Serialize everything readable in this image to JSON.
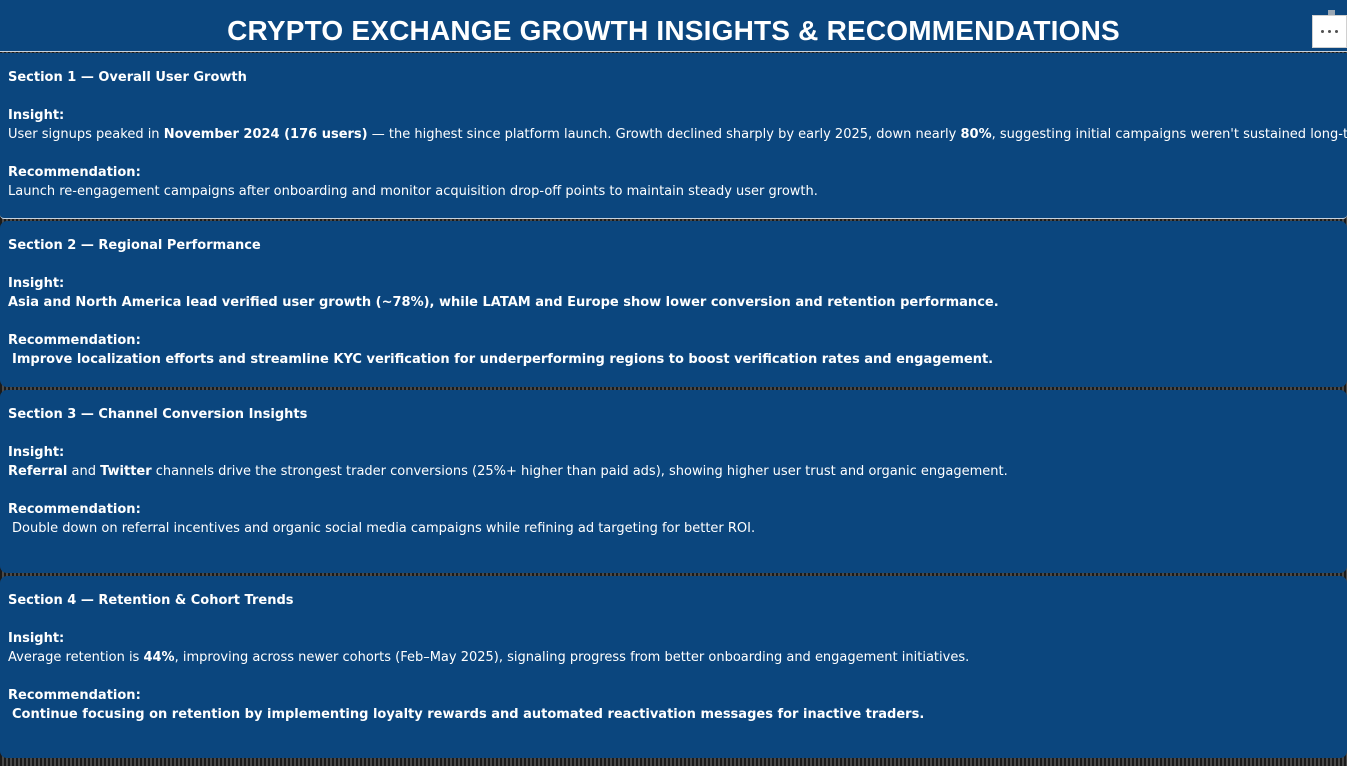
{
  "header": {
    "title": "CRYPTO EXCHANGE GROWTH INSIGHTS & RECOMMENDATIONS"
  },
  "toolbar": {
    "more_icon": "more-horizontal-icon"
  },
  "sections": [
    {
      "heading": "Section 1 — Overall User Growth",
      "insight_label": "Insight:",
      "insight": {
        "p1": "User signups peaked in ",
        "b1": "November 2024 (176 users)",
        "p2": " — the highest since platform launch. Growth declined sharply by early 2025, down nearly ",
        "b2": "80%",
        "p3": ", suggesting initial campaigns weren't sustained long-term."
      },
      "recommendation_label": "Recommendation:",
      "recommendation": "Launch re-engagement campaigns after onboarding and monitor acquisition drop-off points to maintain steady user growth."
    },
    {
      "heading": "Section 2 — Regional Performance",
      "insight_label": "Insight:",
      "insight": "Asia and North America lead verified user growth (~78%), while LATAM and Europe show lower conversion and retention performance.",
      "recommendation_label": "Recommendation:",
      "recommendation": "Improve localization efforts and streamline KYC verification for underperforming regions to boost verification rates and engagement."
    },
    {
      "heading": "Section 3 — Channel Conversion Insights",
      "insight_label": "Insight:",
      "insight": {
        "b1": "Referral",
        "p1": " and ",
        "b2": "Twitter",
        "p2": " channels drive the strongest trader conversions (25%+ higher than paid ads), showing higher user trust and organic engagement."
      },
      "recommendation_label": "Recommendation:",
      "recommendation": "Double down on referral incentives and organic social media campaigns while refining ad targeting for better ROI."
    },
    {
      "heading": "Section 4 — Retention & Cohort Trends",
      "insight_label": "Insight:",
      "insight": {
        "p1": "Average retention is ",
        "b1": "44%",
        "p2": ", improving across newer cohorts (Feb–May 2025), signaling progress from better onboarding and engagement initiatives."
      },
      "recommendation_label": "Recommendation:",
      "recommendation": "Continue focusing on retention by implementing loyalty rewards and automated reactivation messages for inactive traders."
    }
  ],
  "colors": {
    "panel": "#0b467e",
    "text": "#ffffff",
    "background": "#2a2a2a"
  }
}
